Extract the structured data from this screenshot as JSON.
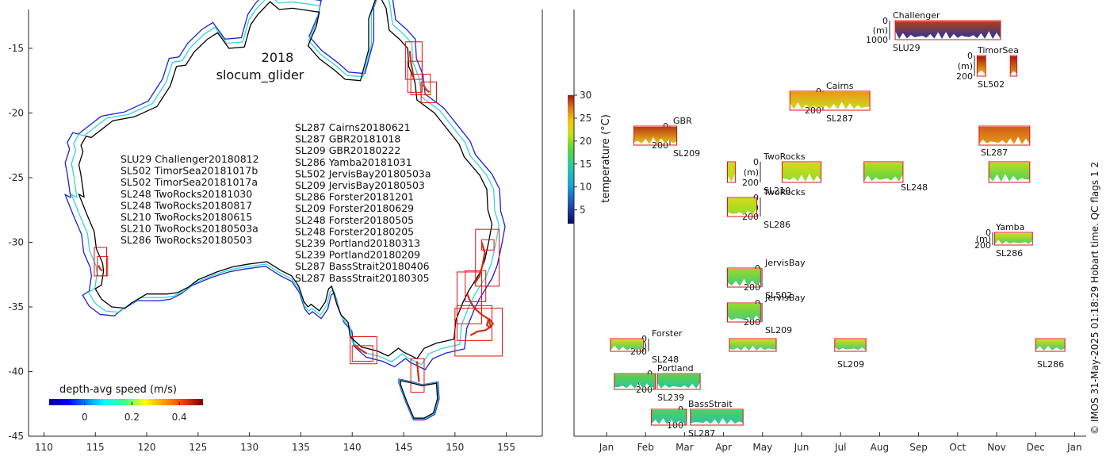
{
  "colors": {
    "australia_coast": "#000000",
    "shelf_200m": "#33d6d6",
    "shelf_1000m": "#1f1fd6",
    "box_outline": "#e01010",
    "track": "#d03010",
    "axis": "#262626"
  },
  "chart_data": [
    {
      "type": "map",
      "title_year": "2018",
      "title_platform": "slocum_glider",
      "xlim": [
        108.5,
        158.5
      ],
      "ylim": [
        -45,
        -12
      ],
      "xticks": [
        110,
        115,
        120,
        125,
        130,
        135,
        140,
        145,
        150,
        155
      ],
      "yticks": [
        -15,
        -20,
        -25,
        -30,
        -35,
        -40,
        -45
      ],
      "colorbar": {
        "label": "depth-avg speed (m/s)",
        "range": [
          -0.15,
          0.5
        ],
        "ticks": [
          0,
          0.2,
          0.4
        ],
        "tick_labels": [
          "0",
          "0.2",
          "0.4"
        ]
      },
      "deployments_left": [
        "SLU29 Challenger20180812",
        "SL502 TimorSea20181017b",
        "SL502 TimorSea20181017a",
        "SL248 TwoRocks20181030",
        "SL248 TwoRocks20180817",
        "SL210 TwoRocks20180615",
        "SL210 TwoRocks20180503a",
        "SL286 TwoRocks20180503"
      ],
      "deployments_right": [
        "SL287 Cairns20180621",
        "SL287 GBR20181018",
        "SL209 GBR20180222",
        "SL286 Yamba20181031",
        "SL502 JervisBay20180503a",
        "SL209 JervisBay20180503",
        "SL286 Forster20181201",
        "SL209 Forster20180629",
        "SL248 Forster20180505",
        "SL248 Forster20180205",
        "SL239 Portland20180313",
        "SL239 Portland20180209",
        "SL287 BassStrait20180406",
        "SL287 BassStrait20180305"
      ],
      "deployment_boxes": [
        {
          "site": "TwoRocks",
          "lon": [
            114.9,
            116.1
          ],
          "lat": [
            -32.6,
            -30.4
          ]
        },
        {
          "site": "TwoRocks",
          "lon": [
            115.2,
            116.2
          ],
          "lat": [
            -32.6,
            -31.1
          ]
        },
        {
          "site": "Cairns",
          "lon": [
            145.2,
            146.8
          ],
          "lat": [
            -17.4,
            -14.5
          ]
        },
        {
          "site": "Cairns",
          "lon": [
            145.4,
            146.8
          ],
          "lat": [
            -18.4,
            -16.0
          ]
        },
        {
          "site": "GBR",
          "lon": [
            145.7,
            147.6
          ],
          "lat": [
            -18.6,
            -17.0
          ]
        },
        {
          "site": "GBR",
          "lon": [
            146.7,
            148.2
          ],
          "lat": [
            -19.2,
            -17.6
          ]
        },
        {
          "site": "Yamba",
          "lon": [
            152.0,
            154.3
          ],
          "lat": [
            -33.4,
            -29.0
          ]
        },
        {
          "site": "Yamba",
          "lon": [
            152.6,
            153.8
          ],
          "lat": [
            -30.6,
            -29.8
          ]
        },
        {
          "site": "Forster",
          "lon": [
            150.2,
            152.6
          ],
          "lat": [
            -36.3,
            -32.3
          ]
        },
        {
          "site": "Forster",
          "lon": [
            151.0,
            153.0
          ],
          "lat": [
            -34.6,
            -32.2
          ]
        },
        {
          "site": "JervisBay",
          "lon": [
            150.0,
            154.6
          ],
          "lat": [
            -38.8,
            -35.1
          ]
        },
        {
          "site": "JervisBay",
          "lon": [
            150.2,
            153.6
          ],
          "lat": [
            -37.6,
            -34.9
          ]
        },
        {
          "site": "Portland",
          "lon": [
            139.8,
            142.4
          ],
          "lat": [
            -39.4,
            -37.3
          ]
        },
        {
          "site": "Portland",
          "lon": [
            140.0,
            142.0
          ],
          "lat": [
            -39.2,
            -38.0
          ]
        },
        {
          "site": "BassStrait",
          "lon": [
            145.7,
            147.0
          ],
          "lat": [
            -41.6,
            -39.0
          ]
        }
      ]
    },
    {
      "type": "timeline",
      "xlabels": [
        "Jan",
        "Feb",
        "Mar",
        "Apr",
        "May",
        "Jun",
        "Jul",
        "Aug",
        "Sep",
        "Oct",
        "Nov",
        "Dec",
        "Jan"
      ],
      "depth_unit_label": "(m)",
      "colorbar": {
        "label": "temperature (°C)",
        "range": [
          2,
          30
        ],
        "ticks": [
          5,
          10,
          15,
          20,
          25,
          30
        ],
        "tick_labels": [
          "5",
          "10",
          "15",
          "20",
          "25",
          "30"
        ]
      },
      "side_note": "© IMOS 31-May-2025 01:18:29 Hobart time. QC flags 1  2",
      "sites": [
        {
          "name": "Challenger",
          "glider": "SLU29",
          "max_depth": "1000",
          "depth_labels": [
            "0",
            "1000"
          ]
        },
        {
          "name": "TimorSea",
          "glider": "SL502",
          "max_depth": "200",
          "depth_labels": [
            "0",
            "200"
          ]
        },
        {
          "name": "Cairns",
          "glider": "SL287",
          "max_depth": "200",
          "depth_labels": [
            "0",
            "200"
          ]
        },
        {
          "name": "GBR",
          "glider": "SL209",
          "max_depth": "200",
          "depth_labels": [
            "0",
            "200"
          ],
          "extra_gliders": [
            "SL287"
          ]
        },
        {
          "name": "TwoRocks",
          "glider": "SL210",
          "max_depth": "200",
          "depth_labels": [
            "0",
            "200"
          ],
          "extra_gliders": [
            "SL248"
          ]
        },
        {
          "name": "TwoRocks",
          "glider": "SL286",
          "max_depth": "200",
          "depth_labels": [
            "0",
            "200"
          ]
        },
        {
          "name": "Yamba",
          "glider": "SL286",
          "max_depth": "200",
          "depth_labels": [
            "0",
            "200"
          ]
        },
        {
          "name": "JervisBay",
          "glider": "SL502",
          "max_depth": "200",
          "depth_labels": [
            "0",
            "200"
          ]
        },
        {
          "name": "JervisBay",
          "glider": "SL209",
          "max_depth": "200",
          "depth_labels": [
            "0",
            "200"
          ]
        },
        {
          "name": "Forster",
          "glider": "SL248",
          "max_depth": "200",
          "depth_labels": [
            "0",
            "200"
          ],
          "extra_gliders": [
            "SL209",
            "SL286"
          ]
        },
        {
          "name": "Portland",
          "glider": "SL239",
          "max_depth": "200",
          "depth_labels": [
            "0",
            "200"
          ]
        },
        {
          "name": "BassStrait",
          "glider": "SL287",
          "max_depth": "100",
          "depth_labels": [
            "0",
            "100"
          ]
        }
      ],
      "deployments": [
        {
          "site": "Challenger",
          "start_month": 8.4,
          "end_month": 11.1,
          "temp_top": 29,
          "temp_bottom": 5
        },
        {
          "site": "TimorSea",
          "start_month": 10.5,
          "end_month": 10.72,
          "temp_top": 30,
          "temp_bottom": 24
        },
        {
          "site": "TimorSea",
          "start_month": 11.35,
          "end_month": 11.52,
          "temp_top": 30,
          "temp_bottom": 26
        },
        {
          "site": "Cairns",
          "start_month": 5.7,
          "end_month": 7.75,
          "temp_top": 26,
          "temp_bottom": 22
        },
        {
          "site": "GBR",
          "start_month": 1.7,
          "end_month": 2.8,
          "temp_top": 29,
          "temp_bottom": 24
        },
        {
          "site": "GBR",
          "start_month": 10.55,
          "end_month": 11.85,
          "temp_top": 28,
          "temp_bottom": 26
        },
        {
          "site": "TwoRocks",
          "start_month": 4.1,
          "end_month": 4.3,
          "temp_top": 22,
          "temp_bottom": 21
        },
        {
          "site": "TwoRocks",
          "start_month": 5.5,
          "end_month": 6.5,
          "temp_top": 22,
          "temp_bottom": 20
        },
        {
          "site": "TwoRocks",
          "start_month": 7.6,
          "end_month": 8.6,
          "temp_top": 21,
          "temp_bottom": 18
        },
        {
          "site": "TwoRocks",
          "start_month": 10.8,
          "end_month": 11.85,
          "temp_top": 21,
          "temp_bottom": 17
        },
        {
          "site": "TwoRocks#2",
          "start_month": 4.1,
          "end_month": 4.85,
          "temp_top": 22,
          "temp_bottom": 20
        },
        {
          "site": "Yamba",
          "start_month": 10.95,
          "end_month": 11.92,
          "temp_top": 22,
          "temp_bottom": 17
        },
        {
          "site": "JervisBay",
          "start_month": 4.1,
          "end_month": 4.95,
          "temp_top": 20,
          "temp_bottom": 16
        },
        {
          "site": "JervisBay#2",
          "start_month": 4.1,
          "end_month": 4.95,
          "temp_top": 20,
          "temp_bottom": 16
        },
        {
          "site": "Forster",
          "start_month": 1.1,
          "end_month": 1.95,
          "temp_top": 22,
          "temp_bottom": 16
        },
        {
          "site": "Forster",
          "start_month": 4.15,
          "end_month": 5.35,
          "temp_top": 22,
          "temp_bottom": 16
        },
        {
          "site": "Forster",
          "start_month": 6.85,
          "end_month": 7.65,
          "temp_top": 22,
          "temp_bottom": 16
        },
        {
          "site": "Forster",
          "start_month": 12.0,
          "end_month": 12.75,
          "temp_top": 22,
          "temp_bottom": 16
        },
        {
          "site": "Portland",
          "start_month": 1.2,
          "end_month": 2.25,
          "temp_top": 18,
          "temp_bottom": 14
        },
        {
          "site": "Portland",
          "start_month": 2.3,
          "end_month": 3.4,
          "temp_top": 18,
          "temp_bottom": 14
        },
        {
          "site": "BassStrait",
          "start_month": 2.15,
          "end_month": 3.05,
          "temp_top": 17,
          "temp_bottom": 14
        },
        {
          "site": "BassStrait",
          "start_month": 3.15,
          "end_month": 4.5,
          "temp_top": 17,
          "temp_bottom": 14
        }
      ]
    }
  ]
}
